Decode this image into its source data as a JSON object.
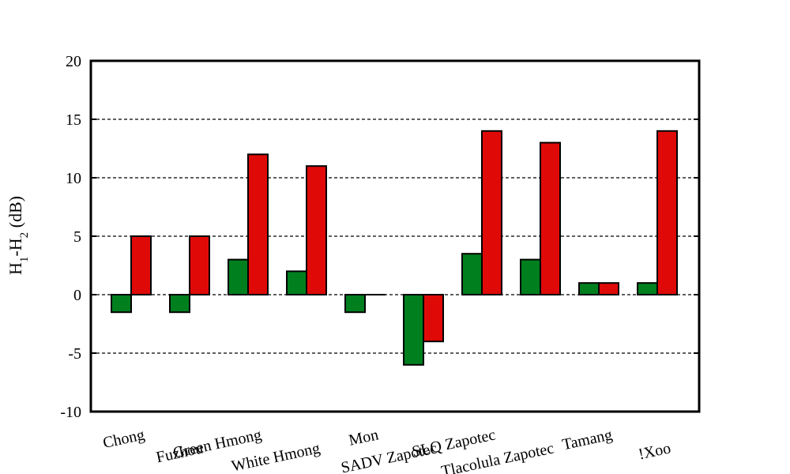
{
  "chart_data": {
    "type": "bar",
    "title": "",
    "xlabel": "",
    "ylabel": {
      "main": "H",
      "sub1": "1",
      "dash": "-H",
      "sub2": "2",
      "unit": " (dB)"
    },
    "ylim": [
      -10,
      20
    ],
    "yticks": [
      -10,
      -5,
      0,
      5,
      10,
      15,
      20
    ],
    "grid": "horizontal-dashed",
    "categories": [
      "Chong",
      "Fuzhou",
      "Green Hmong",
      "White Hmong",
      "Mon",
      "SADV Zapotec",
      "SLQ Zapotec",
      "Tlacolula Zapotec",
      "Tamang",
      "!Xoo"
    ],
    "series": [
      {
        "color": "#007f1f",
        "values": [
          -1.5,
          -1.5,
          3,
          2,
          -1.5,
          -6,
          3.5,
          3,
          1,
          1
        ]
      },
      {
        "color": "#df0a08",
        "values": [
          5,
          5,
          12,
          11,
          0,
          -4,
          14,
          13,
          1,
          14
        ]
      }
    ]
  }
}
